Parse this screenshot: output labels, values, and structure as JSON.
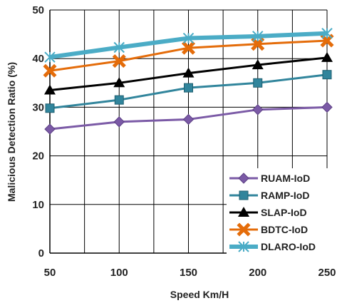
{
  "chart_data": {
    "type": "line",
    "title": "",
    "xlabel": "Speed Km/H",
    "ylabel": "Malicious Detection Ratio (%)",
    "x": [
      50,
      100,
      150,
      200,
      250
    ],
    "xlim": [
      50,
      250
    ],
    "ylim": [
      0,
      50
    ],
    "yticks": [
      0,
      10,
      20,
      30,
      40,
      50
    ],
    "grid": true,
    "legend_position": "bottom-right",
    "series": [
      {
        "name": "RUAM-IoD",
        "values": [
          25.5,
          27.0,
          27.5,
          29.5,
          30.0
        ],
        "color": "#7b5aa6",
        "marker": "diamond"
      },
      {
        "name": "RAMP-IoD",
        "values": [
          29.8,
          31.5,
          34.0,
          35.0,
          36.7
        ],
        "color": "#31859c",
        "marker": "square"
      },
      {
        "name": "SLAP-IoD",
        "values": [
          33.5,
          35.0,
          37.0,
          38.7,
          40.2
        ],
        "color": "#000000",
        "marker": "triangle"
      },
      {
        "name": "BDTC-IoD",
        "values": [
          37.5,
          39.5,
          42.2,
          43.0,
          43.7
        ],
        "color": "#e46c0a",
        "marker": "x"
      },
      {
        "name": "DLARO-IoD",
        "values": [
          40.3,
          42.3,
          44.2,
          44.6,
          45.2
        ],
        "color": "#4bacc6",
        "marker": "star"
      }
    ]
  }
}
